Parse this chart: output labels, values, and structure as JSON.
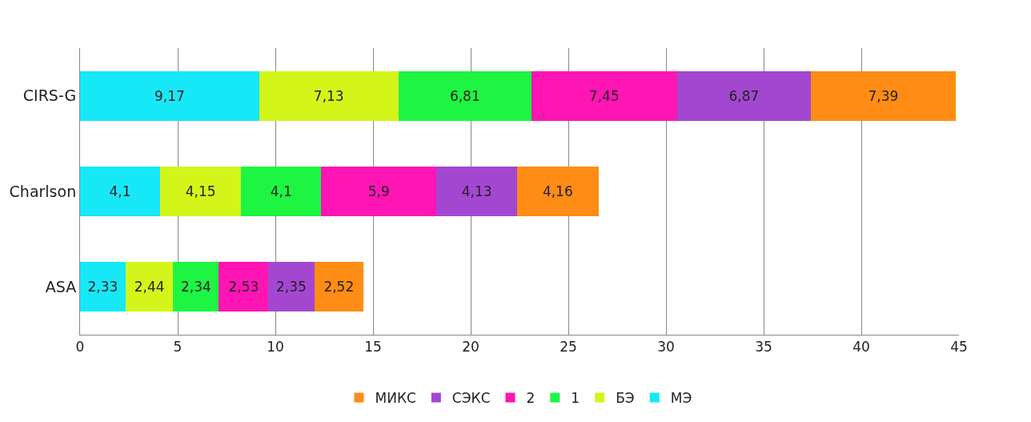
{
  "chart_data": {
    "type": "bar",
    "orientation": "horizontal",
    "stacked": true,
    "categories": [
      "CIRS-G",
      "Charlson",
      "ASA"
    ],
    "series": [
      {
        "name": "МЭ",
        "color": "#17e8f7",
        "values": [
          9.17,
          4.1,
          2.33
        ],
        "value_labels": [
          "9,17",
          "4,1",
          "2,33"
        ]
      },
      {
        "name": "БЭ",
        "color": "#d4f51a",
        "values": [
          7.13,
          4.15,
          2.44
        ],
        "value_labels": [
          "7,13",
          "4,15",
          "2,44"
        ]
      },
      {
        "name": "1",
        "color": "#1ef542",
        "values": [
          6.81,
          4.1,
          2.34
        ],
        "value_labels": [
          "6,81",
          "4,1",
          "2,34"
        ]
      },
      {
        "name": "2",
        "color": "#ff14b4",
        "values": [
          7.45,
          5.9,
          2.53
        ],
        "value_labels": [
          "7,45",
          "5,9",
          "2,53"
        ]
      },
      {
        "name": "СЭКС",
        "color": "#a347d1",
        "values": [
          6.87,
          4.13,
          2.35
        ],
        "value_labels": [
          "6,87",
          "4,13",
          "2,35"
        ]
      },
      {
        "name": "МИКС",
        "color": "#ff8c14",
        "values": [
          7.39,
          4.16,
          2.52
        ],
        "value_labels": [
          "7,39",
          "4,16",
          "2,52"
        ]
      }
    ],
    "xlim": [
      0,
      45
    ],
    "xticks": [
      0,
      5,
      10,
      15,
      20,
      25,
      30,
      35,
      40,
      45
    ],
    "grid": "x",
    "legend": "bottom"
  }
}
